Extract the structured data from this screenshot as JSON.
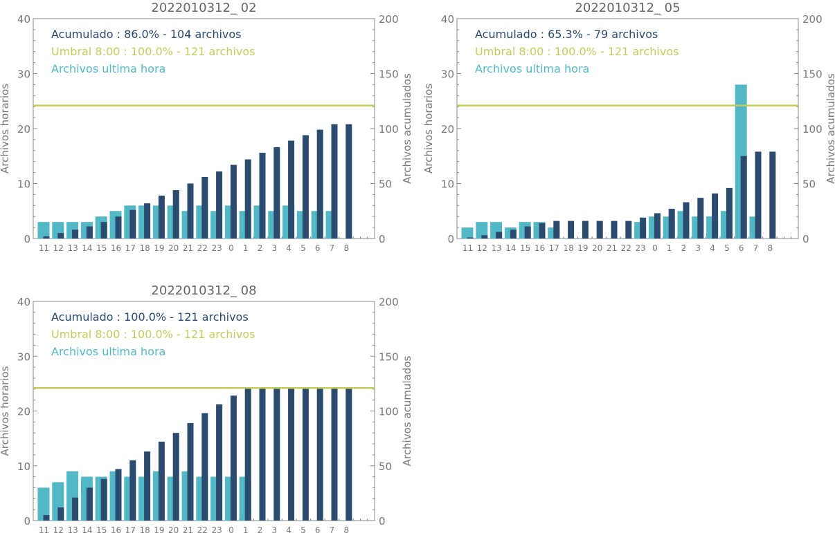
{
  "colors": {
    "hourly": "#53b8c6",
    "cumulative": "#2a4a6e",
    "threshold": "#c3cb5c",
    "axis": "#888888",
    "text": "#777777"
  },
  "chart_data": [
    {
      "type": "bar",
      "title": "2022010312_ 02",
      "ylabel": "Archivos horarios",
      "y2label": "Archivos acumulados",
      "ylim": [
        0,
        40
      ],
      "y2lim": [
        0,
        200
      ],
      "yticks": [
        "0",
        "10",
        "20",
        "30",
        "40"
      ],
      "y2ticks": [
        "0",
        "50",
        "100",
        "150",
        "200"
      ],
      "categories": [
        "11",
        "12",
        "13",
        "14",
        "15",
        "16",
        "17",
        "18",
        "19",
        "20",
        "21",
        "22",
        "23",
        "0",
        "1",
        "2",
        "3",
        "4",
        "5",
        "6",
        "7",
        "8"
      ],
      "legend": [
        "Acumulado : 86.0% - 104 archivos",
        "Umbral 8:00 : 100.0% - 121 archivos",
        "Archivos ultima hora"
      ],
      "threshold": 121,
      "series": [
        {
          "name": "Archivos ultima hora",
          "axis": "left",
          "values": [
            3,
            3,
            3,
            3,
            4,
            5,
            6,
            6,
            6,
            6,
            5,
            6,
            5,
            6,
            5,
            6,
            5,
            6,
            5,
            5,
            5,
            null
          ]
        },
        {
          "name": "Acumulado",
          "axis": "right",
          "values": [
            2,
            5,
            8,
            11,
            15,
            20,
            26,
            32,
            39,
            44,
            50,
            56,
            61,
            67,
            72,
            78,
            83,
            89,
            94,
            99,
            104,
            104
          ]
        }
      ]
    },
    {
      "type": "bar",
      "title": "2022010312_ 05",
      "ylabel": "Archivos horarios",
      "y2label": "Archivos acumulados",
      "ylim": [
        0,
        40
      ],
      "y2lim": [
        0,
        200
      ],
      "yticks": [
        "0",
        "10",
        "20",
        "30",
        "40"
      ],
      "y2ticks": [
        "0",
        "50",
        "100",
        "150",
        "200"
      ],
      "categories": [
        "11",
        "12",
        "13",
        "14",
        "15",
        "16",
        "17",
        "18",
        "19",
        "20",
        "21",
        "22",
        "23",
        "0",
        "1",
        "2",
        "3",
        "4",
        "5",
        "6",
        "7",
        "8"
      ],
      "legend": [
        "Acumulado : 65.3% - 79 archivos",
        "Umbral 8:00 : 100.0% - 121 archivos",
        "Archivos ultima hora"
      ],
      "threshold": 121,
      "series": [
        {
          "name": "Archivos ultima hora",
          "axis": "left",
          "values": [
            2,
            3,
            3,
            2,
            3,
            3,
            2,
            0,
            0,
            0,
            0,
            0,
            3,
            4,
            4,
            5,
            4,
            4,
            5,
            28,
            4,
            null
          ]
        },
        {
          "name": "Acumulado",
          "axis": "right",
          "values": [
            1,
            3,
            6,
            8,
            11,
            14,
            16,
            16,
            16,
            16,
            16,
            16,
            19,
            23,
            27,
            33,
            37,
            41,
            46,
            75,
            79,
            79
          ]
        }
      ]
    },
    {
      "type": "bar",
      "title": "2022010312_ 08",
      "ylabel": "Archivos horarios",
      "y2label": "Archivos acumulados",
      "ylim": [
        0,
        40
      ],
      "y2lim": [
        0,
        200
      ],
      "yticks": [
        "0",
        "10",
        "20",
        "30",
        "40"
      ],
      "y2ticks": [
        "0",
        "50",
        "100",
        "150",
        "200"
      ],
      "categories": [
        "11",
        "12",
        "13",
        "14",
        "15",
        "16",
        "17",
        "18",
        "19",
        "20",
        "21",
        "22",
        "23",
        "0",
        "1",
        "2",
        "3",
        "4",
        "5",
        "6",
        "7",
        "8"
      ],
      "legend": [
        "Acumulado : 100.0% - 121 archivos",
        "Umbral 8:00 : 100.0% - 121 archivos",
        "Archivos ultima hora"
      ],
      "threshold": 121,
      "series": [
        {
          "name": "Archivos ultima hora",
          "axis": "left",
          "values": [
            6,
            7,
            9,
            8,
            8,
            9,
            8,
            8,
            9,
            8,
            9,
            8,
            8,
            8,
            8,
            null,
            null,
            null,
            null,
            null,
            null,
            null
          ]
        },
        {
          "name": "Acumulado",
          "axis": "right",
          "values": [
            5,
            12,
            21,
            30,
            38,
            47,
            55,
            63,
            72,
            80,
            89,
            98,
            106,
            114,
            121,
            121,
            121,
            121,
            121,
            121,
            121,
            121
          ]
        }
      ]
    }
  ]
}
